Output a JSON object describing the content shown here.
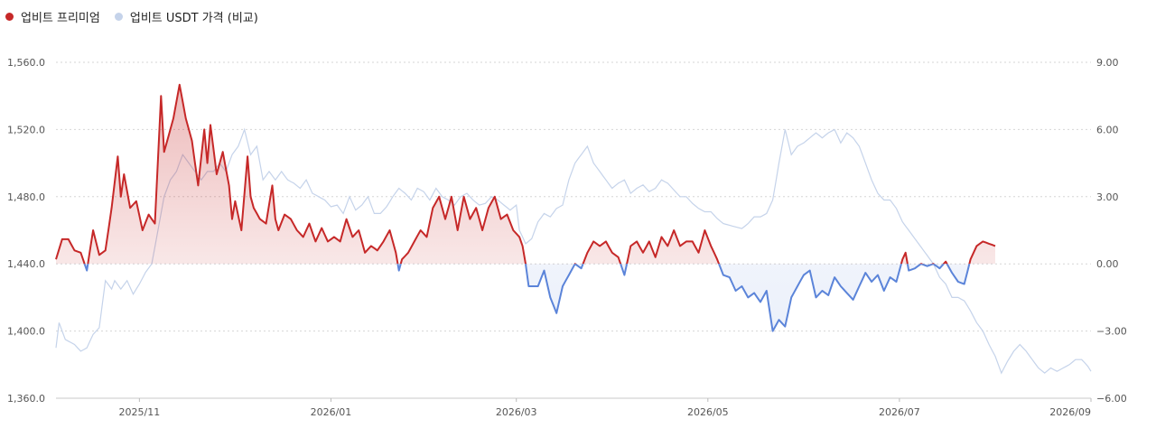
{
  "chart_data": {
    "type": "line",
    "title": "",
    "legend": [
      {
        "label": "업비트 프리미엄",
        "color": "#c62828"
      },
      {
        "label": "업비트 USDT 가격 (비교)",
        "color": "#c5d3ea"
      }
    ],
    "x_ticks": [
      "2025/11",
      "2026/01",
      "2026/03",
      "2026/05",
      "2026/07",
      "2026/09"
    ],
    "x_tick_index": [
      27,
      89,
      149,
      211,
      273,
      335
    ],
    "left_axis": {
      "ticks": [
        "1,360.0",
        "1,400.0",
        "1,440.0",
        "1,480.0",
        "1,520.0",
        "1,560.0"
      ],
      "values": [
        1360,
        1400,
        1440,
        1480,
        1520,
        1560
      ],
      "ylim": [
        1360,
        1560
      ]
    },
    "right_axis": {
      "ticks": [
        "−6.00",
        "−3.00",
        "0.00",
        "3.00",
        "6.00",
        "9.00"
      ],
      "values": [
        -6,
        -3,
        0,
        3,
        6,
        9
      ],
      "ylim": [
        -6,
        9
      ]
    },
    "positive_color": "#c62828",
    "negative_color": "#5b84d9",
    "usdt_color": "#c5d3ea",
    "premium_keys": [
      [
        0,
        0.2
      ],
      [
        2,
        1.1
      ],
      [
        4,
        1.1
      ],
      [
        6,
        0.6
      ],
      [
        8,
        0.5
      ],
      [
        10,
        -0.3
      ],
      [
        12,
        1.5
      ],
      [
        14,
        0.4
      ],
      [
        16,
        0.6
      ],
      [
        18,
        2.5
      ],
      [
        20,
        4.8
      ],
      [
        21,
        3.0
      ],
      [
        22,
        4.0
      ],
      [
        24,
        2.5
      ],
      [
        26,
        2.8
      ],
      [
        28,
        1.5
      ],
      [
        30,
        2.2
      ],
      [
        32,
        1.8
      ],
      [
        34,
        7.5
      ],
      [
        35,
        5.0
      ],
      [
        36,
        5.5
      ],
      [
        38,
        6.5
      ],
      [
        40,
        8.0
      ],
      [
        42,
        6.5
      ],
      [
        44,
        5.5
      ],
      [
        46,
        3.5
      ],
      [
        48,
        6.0
      ],
      [
        49,
        4.5
      ],
      [
        50,
        6.2
      ],
      [
        52,
        4.0
      ],
      [
        54,
        5.0
      ],
      [
        56,
        3.5
      ],
      [
        57,
        2.0
      ],
      [
        58,
        2.8
      ],
      [
        60,
        1.5
      ],
      [
        62,
        4.8
      ],
      [
        63,
        3.0
      ],
      [
        64,
        2.5
      ],
      [
        66,
        2.0
      ],
      [
        68,
        1.8
      ],
      [
        70,
        3.5
      ],
      [
        71,
        2.0
      ],
      [
        72,
        1.5
      ],
      [
        74,
        2.2
      ],
      [
        76,
        2.0
      ],
      [
        78,
        1.5
      ],
      [
        80,
        1.2
      ],
      [
        82,
        1.8
      ],
      [
        84,
        1.0
      ],
      [
        86,
        1.6
      ],
      [
        88,
        1.0
      ],
      [
        90,
        1.2
      ],
      [
        92,
        1.0
      ],
      [
        94,
        2.0
      ],
      [
        96,
        1.2
      ],
      [
        98,
        1.5
      ],
      [
        100,
        0.5
      ],
      [
        102,
        0.8
      ],
      [
        104,
        0.6
      ],
      [
        106,
        1.0
      ],
      [
        108,
        1.5
      ],
      [
        110,
        0.5
      ],
      [
        111,
        -0.3
      ],
      [
        112,
        0.2
      ],
      [
        114,
        0.5
      ],
      [
        116,
        1.0
      ],
      [
        118,
        1.5
      ],
      [
        120,
        1.2
      ],
      [
        122,
        2.5
      ],
      [
        124,
        3.0
      ],
      [
        126,
        2.0
      ],
      [
        128,
        3.0
      ],
      [
        130,
        1.5
      ],
      [
        132,
        3.0
      ],
      [
        134,
        2.0
      ],
      [
        136,
        2.5
      ],
      [
        138,
        1.5
      ],
      [
        140,
        2.5
      ],
      [
        142,
        3.0
      ],
      [
        144,
        2.0
      ],
      [
        146,
        2.2
      ],
      [
        148,
        1.5
      ],
      [
        150,
        1.2
      ],
      [
        151,
        0.8
      ],
      [
        152,
        0.0
      ],
      [
        153,
        -1.0
      ],
      [
        156,
        -1.0
      ],
      [
        158,
        -0.3
      ],
      [
        160,
        -1.5
      ],
      [
        162,
        -2.2
      ],
      [
        164,
        -1.0
      ],
      [
        166,
        -0.5
      ],
      [
        168,
        0.0
      ],
      [
        170,
        -0.2
      ],
      [
        172,
        0.5
      ],
      [
        174,
        1.0
      ],
      [
        176,
        0.8
      ],
      [
        178,
        1.0
      ],
      [
        180,
        0.5
      ],
      [
        182,
        0.3
      ],
      [
        184,
        -0.5
      ],
      [
        186,
        0.8
      ],
      [
        188,
        1.0
      ],
      [
        190,
        0.5
      ],
      [
        192,
        1.0
      ],
      [
        194,
        0.3
      ],
      [
        196,
        1.2
      ],
      [
        198,
        0.8
      ],
      [
        200,
        1.5
      ],
      [
        202,
        0.8
      ],
      [
        204,
        1.0
      ],
      [
        206,
        1.0
      ],
      [
        208,
        0.5
      ],
      [
        210,
        1.5
      ],
      [
        212,
        0.8
      ],
      [
        214,
        0.2
      ],
      [
        216,
        -0.5
      ],
      [
        218,
        -0.6
      ],
      [
        220,
        -1.2
      ],
      [
        222,
        -1.0
      ],
      [
        224,
        -1.5
      ],
      [
        226,
        -1.3
      ],
      [
        228,
        -1.7
      ],
      [
        230,
        -1.2
      ],
      [
        232,
        -3.0
      ],
      [
        234,
        -2.5
      ],
      [
        236,
        -2.8
      ],
      [
        238,
        -1.5
      ],
      [
        240,
        -1.0
      ],
      [
        242,
        -0.5
      ],
      [
        244,
        -0.3
      ],
      [
        246,
        -1.5
      ],
      [
        248,
        -1.2
      ],
      [
        250,
        -1.4
      ],
      [
        252,
        -0.6
      ],
      [
        254,
        -1.0
      ],
      [
        256,
        -1.3
      ],
      [
        258,
        -1.6
      ],
      [
        260,
        -1.0
      ],
      [
        262,
        -0.4
      ],
      [
        264,
        -0.8
      ],
      [
        266,
        -0.5
      ],
      [
        268,
        -1.2
      ],
      [
        270,
        -0.6
      ],
      [
        272,
        -0.8
      ],
      [
        274,
        0.2
      ],
      [
        275,
        0.5
      ],
      [
        276,
        -0.3
      ],
      [
        278,
        -0.2
      ],
      [
        280,
        0.0
      ],
      [
        282,
        -0.1
      ],
      [
        284,
        0.0
      ],
      [
        286,
        -0.2
      ],
      [
        288,
        0.1
      ],
      [
        290,
        -0.4
      ],
      [
        292,
        -0.8
      ],
      [
        294,
        -0.9
      ],
      [
        296,
        0.2
      ],
      [
        298,
        0.8
      ],
      [
        300,
        1.0
      ],
      [
        302,
        0.9
      ],
      [
        304,
        0.8
      ]
    ],
    "usdt_keys": [
      [
        0,
        1390
      ],
      [
        1,
        1405
      ],
      [
        3,
        1395
      ],
      [
        6,
        1392
      ],
      [
        8,
        1388
      ],
      [
        10,
        1390
      ],
      [
        12,
        1398
      ],
      [
        14,
        1402
      ],
      [
        16,
        1430
      ],
      [
        18,
        1425
      ],
      [
        19,
        1430
      ],
      [
        21,
        1425
      ],
      [
        23,
        1430
      ],
      [
        25,
        1422
      ],
      [
        27,
        1428
      ],
      [
        29,
        1435
      ],
      [
        31,
        1440
      ],
      [
        33,
        1460
      ],
      [
        35,
        1480
      ],
      [
        37,
        1490
      ],
      [
        39,
        1495
      ],
      [
        41,
        1505
      ],
      [
        43,
        1500
      ],
      [
        45,
        1495
      ],
      [
        47,
        1490
      ],
      [
        49,
        1495
      ],
      [
        51,
        1495
      ],
      [
        53,
        1500
      ],
      [
        55,
        1495
      ],
      [
        57,
        1505
      ],
      [
        59,
        1510
      ],
      [
        61,
        1520
      ],
      [
        63,
        1505
      ],
      [
        65,
        1510
      ],
      [
        67,
        1490
      ],
      [
        69,
        1495
      ],
      [
        71,
        1490
      ],
      [
        73,
        1495
      ],
      [
        75,
        1490
      ],
      [
        77,
        1488
      ],
      [
        79,
        1485
      ],
      [
        81,
        1490
      ],
      [
        83,
        1482
      ],
      [
        85,
        1480
      ],
      [
        87,
        1478
      ],
      [
        89,
        1474
      ],
      [
        91,
        1475
      ],
      [
        93,
        1470
      ],
      [
        95,
        1480
      ],
      [
        97,
        1472
      ],
      [
        99,
        1475
      ],
      [
        101,
        1480
      ],
      [
        103,
        1470
      ],
      [
        105,
        1470
      ],
      [
        107,
        1474
      ],
      [
        109,
        1480
      ],
      [
        111,
        1485
      ],
      [
        113,
        1482
      ],
      [
        115,
        1478
      ],
      [
        117,
        1485
      ],
      [
        119,
        1483
      ],
      [
        121,
        1478
      ],
      [
        123,
        1485
      ],
      [
        125,
        1480
      ],
      [
        127,
        1478
      ],
      [
        129,
        1475
      ],
      [
        131,
        1480
      ],
      [
        133,
        1482
      ],
      [
        135,
        1478
      ],
      [
        137,
        1475
      ],
      [
        139,
        1476
      ],
      [
        141,
        1480
      ],
      [
        143,
        1478
      ],
      [
        145,
        1475
      ],
      [
        147,
        1472
      ],
      [
        149,
        1475
      ],
      [
        150,
        1460
      ],
      [
        152,
        1452
      ],
      [
        154,
        1455
      ],
      [
        156,
        1465
      ],
      [
        158,
        1470
      ],
      [
        160,
        1468
      ],
      [
        162,
        1473
      ],
      [
        164,
        1475
      ],
      [
        166,
        1490
      ],
      [
        168,
        1500
      ],
      [
        170,
        1505
      ],
      [
        172,
        1510
      ],
      [
        174,
        1500
      ],
      [
        176,
        1495
      ],
      [
        178,
        1490
      ],
      [
        180,
        1485
      ],
      [
        182,
        1488
      ],
      [
        184,
        1490
      ],
      [
        186,
        1482
      ],
      [
        188,
        1485
      ],
      [
        190,
        1487
      ],
      [
        192,
        1483
      ],
      [
        194,
        1485
      ],
      [
        196,
        1490
      ],
      [
        198,
        1488
      ],
      [
        200,
        1484
      ],
      [
        202,
        1480
      ],
      [
        204,
        1480
      ],
      [
        206,
        1476
      ],
      [
        208,
        1473
      ],
      [
        210,
        1471
      ],
      [
        212,
        1471
      ],
      [
        214,
        1467
      ],
      [
        216,
        1464
      ],
      [
        218,
        1463
      ],
      [
        220,
        1462
      ],
      [
        222,
        1461
      ],
      [
        224,
        1464
      ],
      [
        226,
        1468
      ],
      [
        228,
        1468
      ],
      [
        230,
        1470
      ],
      [
        232,
        1478
      ],
      [
        234,
        1500
      ],
      [
        236,
        1520
      ],
      [
        238,
        1505
      ],
      [
        240,
        1510
      ],
      [
        242,
        1512
      ],
      [
        244,
        1515
      ],
      [
        246,
        1518
      ],
      [
        248,
        1515
      ],
      [
        250,
        1518
      ],
      [
        252,
        1520
      ],
      [
        254,
        1512
      ],
      [
        256,
        1518
      ],
      [
        258,
        1515
      ],
      [
        260,
        1510
      ],
      [
        262,
        1500
      ],
      [
        264,
        1490
      ],
      [
        266,
        1482
      ],
      [
        268,
        1478
      ],
      [
        270,
        1478
      ],
      [
        272,
        1473
      ],
      [
        274,
        1465
      ],
      [
        276,
        1460
      ],
      [
        278,
        1455
      ],
      [
        280,
        1450
      ],
      [
        282,
        1445
      ],
      [
        284,
        1440
      ],
      [
        286,
        1432
      ],
      [
        288,
        1428
      ],
      [
        290,
        1420
      ],
      [
        292,
        1420
      ],
      [
        294,
        1418
      ],
      [
        296,
        1412
      ],
      [
        298,
        1405
      ],
      [
        300,
        1400
      ],
      [
        302,
        1392
      ],
      [
        304,
        1385
      ],
      [
        306,
        1375
      ],
      [
        308,
        1382
      ],
      [
        310,
        1388
      ],
      [
        312,
        1392
      ],
      [
        314,
        1388
      ],
      [
        316,
        1383
      ],
      [
        318,
        1378
      ],
      [
        320,
        1375
      ],
      [
        322,
        1378
      ],
      [
        324,
        1376
      ],
      [
        326,
        1378
      ],
      [
        328,
        1380
      ],
      [
        330,
        1383
      ],
      [
        332,
        1383
      ],
      [
        334,
        1379
      ],
      [
        335,
        1376
      ]
    ]
  }
}
